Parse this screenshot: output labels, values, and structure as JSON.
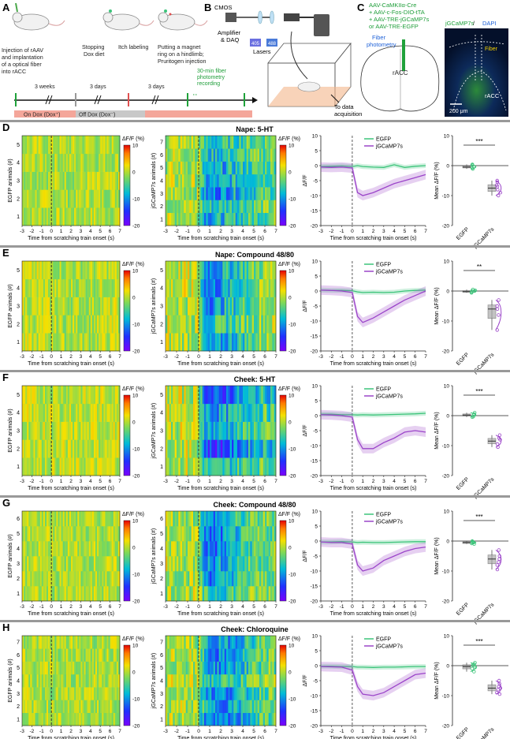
{
  "panels": {
    "a": {
      "letter": "A",
      "ann_injection": [
        "Injection of rAAV",
        "and implantation",
        "of a optical fiber",
        "into rACC"
      ],
      "ann_stop": [
        "Stopping",
        "Dox diet"
      ],
      "ann_itch": "Itch labeling",
      "ann_magnet": [
        "Putting a magnet",
        "ring on a hindlimb;",
        "Pruritogen injection"
      ],
      "ann_record": [
        "30-min fiber",
        "photometry",
        "recording"
      ],
      "week_label": "3 weeks",
      "days1": "3 days",
      "days2": "3 days",
      "on_dox": "On Dox (Dox⁺)",
      "off_dox": "Off Dox (Dox⁻)"
    },
    "b": {
      "letter": "B",
      "cmos": "CMOS",
      "amp": [
        "Amplifier",
        "& DAQ"
      ],
      "lasers": "Lasers",
      "laser1": "405",
      "laser2": "488",
      "data": [
        "To data",
        "acquisition"
      ]
    },
    "c": {
      "letter": "C",
      "virus": [
        "AAV-CaMKIIα-Cre",
        "+ AAV-c-Fos-DIO-tTA",
        "+ AAV-TRE-jGCaMP7s",
        "or  AAV-TRE-EGFP"
      ],
      "fiber_label": [
        "Fiber",
        "photometry"
      ],
      "racc": "rACC",
      "img_title_a": "jGCaMP7s",
      "img_title_sep": " / ",
      "img_title_b": "DAPI",
      "img_fiber": "Fiber",
      "img_racc": "rACC",
      "scale": "200 μm"
    }
  },
  "colorbar": {
    "title": "ΔF/F (%)",
    "ticks": [
      "10",
      "0",
      "-10",
      "-20"
    ]
  },
  "heat_x_ticks": [
    "-3",
    "-2",
    "-1",
    "0",
    "1",
    "2",
    "3",
    "4",
    "5",
    "6",
    "7"
  ],
  "trace_x_ticks": [
    "-3",
    "-2",
    "-1",
    "0",
    "1",
    "2",
    "3",
    "4",
    "5",
    "6",
    "7"
  ],
  "x_label": "Time from scratching train onset (s)",
  "trace_y_label": "ΔF/F",
  "bar_y_label": "Mean ΔF/F (%)",
  "egfp_ylabel": "EGFP animals (#)",
  "gcamp_ylabel": "jGCaMP7s animals (#)",
  "group_labels": [
    "EGFP",
    "jGCaMP7s"
  ],
  "legend": [
    "EGFP",
    "jGCaMP7s"
  ],
  "colors": {
    "egfp": "#3cc47a",
    "gcamp": "#9b45c9",
    "bar_gray": "#aaaaaa"
  },
  "chart_data": [
    {
      "letter": "D",
      "title": "Nape:  5-HT",
      "type": "heatmap+line+box",
      "egfp_n": 5,
      "gcamp_n": 7,
      "sig": "***",
      "trace": {
        "x": [
          -3,
          -2,
          -1,
          0,
          0.5,
          1,
          2,
          3,
          4,
          5,
          6,
          7
        ],
        "gcamp": [
          -0.5,
          -0.6,
          -0.5,
          -0.8,
          -9,
          -10,
          -9,
          -7.5,
          -6,
          -5,
          -4,
          -3
        ],
        "egfp": [
          -0.3,
          -0.2,
          -0.1,
          -0.3,
          0,
          -0.3,
          -0.5,
          -0.6,
          0.3,
          -0.6,
          -0.2,
          0
        ],
        "ylim": [
          -20,
          10
        ]
      },
      "bar": {
        "egfp_mean": -0.5,
        "egfp_pts": [
          -0.8,
          0.2,
          -1.1,
          0.4,
          -0.3
        ],
        "gcamp_mean": -7.5,
        "gcamp_pts": [
          -5,
          -6.5,
          -7,
          -8,
          -9,
          -10,
          -5.5
        ],
        "ylim": [
          -20,
          10
        ]
      }
    },
    {
      "letter": "E",
      "title": "Nape:  Compound 48/80",
      "type": "heatmap+line+box",
      "egfp_n": 5,
      "gcamp_n": 5,
      "sig": "**",
      "trace": {
        "x": [
          -3,
          -2,
          -1,
          0,
          0.5,
          1,
          2,
          3,
          4,
          5,
          6,
          7
        ],
        "gcamp": [
          0.3,
          0.2,
          0,
          -0.5,
          -8.5,
          -10.5,
          -9,
          -7,
          -5,
          -3,
          -1.5,
          0
        ],
        "egfp": [
          0.3,
          0.2,
          0.2,
          0.1,
          -0.3,
          -0.5,
          -0.4,
          -0.5,
          -0.4,
          0,
          0.2,
          0.3
        ],
        "ylim": [
          -20,
          10
        ]
      },
      "bar": {
        "egfp_mean": -0.2,
        "egfp_pts": [
          0.5,
          -0.3,
          0.2,
          -0.6,
          0
        ],
        "gcamp_mean": -6.0,
        "gcamp_pts": [
          -3,
          -5,
          -6,
          -8,
          -13
        ],
        "ylim": [
          -20,
          10
        ]
      }
    },
    {
      "letter": "F",
      "title": "Cheek:  5-HT",
      "type": "heatmap+line+box",
      "egfp_n": 5,
      "gcamp_n": 5,
      "sig": "***",
      "trace": {
        "x": [
          -3,
          -2,
          -1,
          0,
          0.5,
          1,
          2,
          3,
          4,
          5,
          6,
          7
        ],
        "gcamp": [
          0.3,
          0.2,
          0,
          -0.5,
          -8,
          -11,
          -11,
          -9,
          -7.5,
          -5.5,
          -5,
          -5.5
        ],
        "egfp": [
          0.5,
          0.5,
          0.3,
          0.3,
          0.2,
          0.3,
          0.2,
          0.3,
          0.4,
          0.5,
          0.6,
          0.8
        ],
        "ylim": [
          -20,
          10
        ]
      },
      "bar": {
        "egfp_mean": 0.2,
        "egfp_pts": [
          0.5,
          1,
          -0.5,
          0.3,
          -0.3
        ],
        "gcamp_mean": -8.5,
        "gcamp_pts": [
          -6.5,
          -7.5,
          -8,
          -9.5,
          -10.5
        ],
        "ylim": [
          -20,
          10
        ]
      }
    },
    {
      "letter": "G",
      "title": "Cheek:  Compound 48/80",
      "type": "heatmap+line+box",
      "egfp_n": 6,
      "gcamp_n": 6,
      "sig": "***",
      "trace": {
        "x": [
          -3,
          -2,
          -1,
          0,
          0.5,
          1,
          2,
          3,
          4,
          5,
          6,
          7
        ],
        "gcamp": [
          -0.3,
          -0.5,
          -0.5,
          -1,
          -8,
          -10,
          -9,
          -6.5,
          -5,
          -3.5,
          -2.5,
          -2
        ],
        "egfp": [
          -0.3,
          -0.3,
          -0.2,
          -0.3,
          -0.5,
          -0.4,
          -0.5,
          -0.5,
          -0.4,
          -0.3,
          -0.2,
          -0.2
        ],
        "ylim": [
          -20,
          10
        ]
      },
      "bar": {
        "egfp_mean": -0.5,
        "egfp_pts": [
          -0.3,
          -0.8,
          -0.2,
          -1,
          -0.5,
          0
        ],
        "gcamp_mean": -6.0,
        "gcamp_pts": [
          -3,
          -5,
          -6,
          -7,
          -8,
          -9.5
        ],
        "ylim": [
          -20,
          10
        ]
      }
    },
    {
      "letter": "H",
      "title": "Cheek:  Chloroquine",
      "type": "heatmap+line+box",
      "egfp_n": 7,
      "gcamp_n": 7,
      "sig": "***",
      "trace": {
        "x": [
          -3,
          -2,
          -1,
          0,
          0.5,
          1,
          2,
          3,
          4,
          5,
          6,
          7
        ],
        "gcamp": [
          -0.3,
          -0.4,
          -0.5,
          -1.5,
          -7,
          -9.5,
          -10,
          -9,
          -7,
          -5,
          -3,
          -2.5
        ],
        "egfp": [
          -0.2,
          -0.2,
          -0.3,
          -0.3,
          -0.5,
          -0.5,
          -0.6,
          -0.5,
          -0.5,
          -0.4,
          -0.3,
          -0.3
        ],
        "ylim": [
          -20,
          10
        ]
      },
      "bar": {
        "egfp_mean": -0.3,
        "egfp_pts": [
          -2,
          -1,
          0,
          1,
          0.3,
          -0.5,
          0.5
        ],
        "gcamp_mean": -7.5,
        "gcamp_pts": [
          -5,
          -6,
          -7,
          -8,
          -9,
          -9.5,
          -7.5
        ],
        "ylim": [
          -20,
          10
        ]
      }
    }
  ]
}
